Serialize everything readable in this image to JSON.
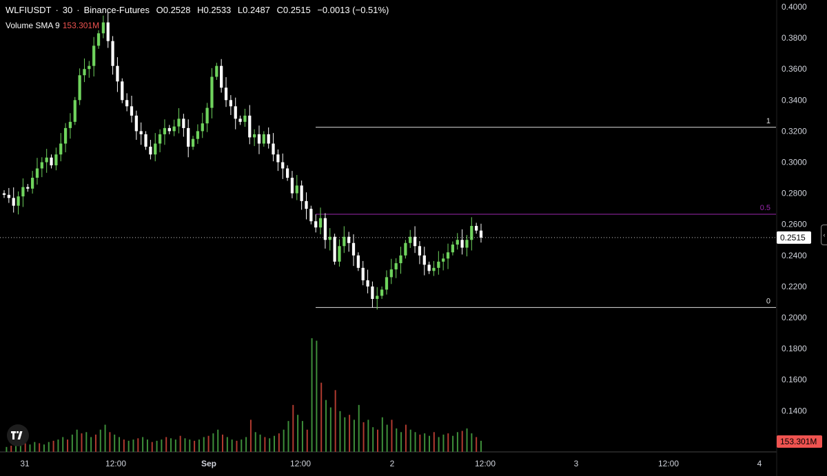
{
  "header": {
    "symbol": "WLFIUSDT",
    "interval": "30",
    "exchange": "Binance-Futures",
    "open": "O0.2528",
    "high": "H0.2533",
    "low": "L0.2487",
    "close": "C0.2515",
    "change": "−0.0013 (−0.51%)"
  },
  "volume_indicator": {
    "label": "Volume SMA 9",
    "value": "153.301M"
  },
  "colors": {
    "up": "#6fd35d",
    "down": "#ffffff",
    "vol_up": "#3e8f3a",
    "vol_down": "#b23b30",
    "fib_mid": "#9c27b0",
    "accent": "#ef5350"
  },
  "chart_data": {
    "type": "candlestick",
    "y_axis": {
      "ticks": [
        "0.4000",
        "0.3800",
        "0.3600",
        "0.3400",
        "0.3200",
        "0.3000",
        "0.2800",
        "0.2600",
        "0.2400",
        "0.2200",
        "0.2000",
        "0.1800",
        "0.1600",
        "0.1400"
      ],
      "range": [
        0.13,
        0.4
      ]
    },
    "x_axis": {
      "labels": [
        "31",
        "12:00",
        "Sep",
        "12:00",
        "2",
        "12:00",
        "3",
        "12:00",
        "4"
      ],
      "bold": [
        false,
        false,
        true,
        false,
        false,
        false,
        false,
        false,
        false
      ]
    },
    "last_price": "0.2515",
    "volume_last_label": "153.301M",
    "fib_levels": [
      {
        "label": "1",
        "price": 0.3225
      },
      {
        "label": "0.5",
        "price": 0.2665
      },
      {
        "label": "0",
        "price": 0.2065
      }
    ],
    "close_path": [
      0.279,
      0.277,
      0.272,
      0.278,
      0.284,
      0.283,
      0.29,
      0.296,
      0.3,
      0.303,
      0.298,
      0.305,
      0.312,
      0.322,
      0.326,
      0.34,
      0.356,
      0.36,
      0.362,
      0.375,
      0.383,
      0.39,
      0.378,
      0.362,
      0.352,
      0.34,
      0.336,
      0.33,
      0.32,
      0.318,
      0.31,
      0.305,
      0.312,
      0.318,
      0.322,
      0.32,
      0.323,
      0.328,
      0.322,
      0.31,
      0.315,
      0.32,
      0.325,
      0.335,
      0.355,
      0.362,
      0.348,
      0.34,
      0.336,
      0.328,
      0.326,
      0.33,
      0.316,
      0.318,
      0.312,
      0.318,
      0.312,
      0.305,
      0.3,
      0.296,
      0.29,
      0.28,
      0.285,
      0.275,
      0.27,
      0.262,
      0.258,
      0.264,
      0.25,
      0.252,
      0.236,
      0.246,
      0.252,
      0.248,
      0.24,
      0.232,
      0.224,
      0.22,
      0.212,
      0.214,
      0.218,
      0.226,
      0.231,
      0.235,
      0.24,
      0.248,
      0.252,
      0.246,
      0.24,
      0.234,
      0.23,
      0.232,
      0.236,
      0.238,
      0.242,
      0.247,
      0.25,
      0.245,
      0.25,
      0.259,
      0.256,
      0.2515
    ],
    "volume_path": [
      0.4,
      0.5,
      0.6,
      0.5,
      0.7,
      0.6,
      0.8,
      0.7,
      0.6,
      0.8,
      0.9,
      1.0,
      1.2,
      1.0,
      1.4,
      1.8,
      1.5,
      1.6,
      1.2,
      1.4,
      1.8,
      2.2,
      1.6,
      1.4,
      1.2,
      1.0,
      0.9,
      1.0,
      1.1,
      1.2,
      1.0,
      0.8,
      0.9,
      1.0,
      1.2,
      1.1,
      1.0,
      1.3,
      1.1,
      1.0,
      0.9,
      1.0,
      1.2,
      1.3,
      1.5,
      1.8,
      1.4,
      1.2,
      1.0,
      0.9,
      1.0,
      1.2,
      2.6,
      1.6,
      1.4,
      1.2,
      1.1,
      1.3,
      1.5,
      1.8,
      2.5,
      3.8,
      3.0,
      2.5,
      1.8,
      9.2,
      9.0,
      5.6,
      4.2,
      3.6,
      5.0,
      3.3,
      2.8,
      3.0,
      2.6,
      3.8,
      2.4,
      2.6,
      2.0,
      1.8,
      2.8,
      2.2,
      2.6,
      1.9,
      1.6,
      2.2,
      1.8,
      1.6,
      1.4,
      1.5,
      1.3,
      1.6,
      1.2,
      1.4,
      1.5,
      1.3,
      1.6,
      1.7,
      1.9,
      1.5,
      1.2,
      0.9
    ]
  }
}
